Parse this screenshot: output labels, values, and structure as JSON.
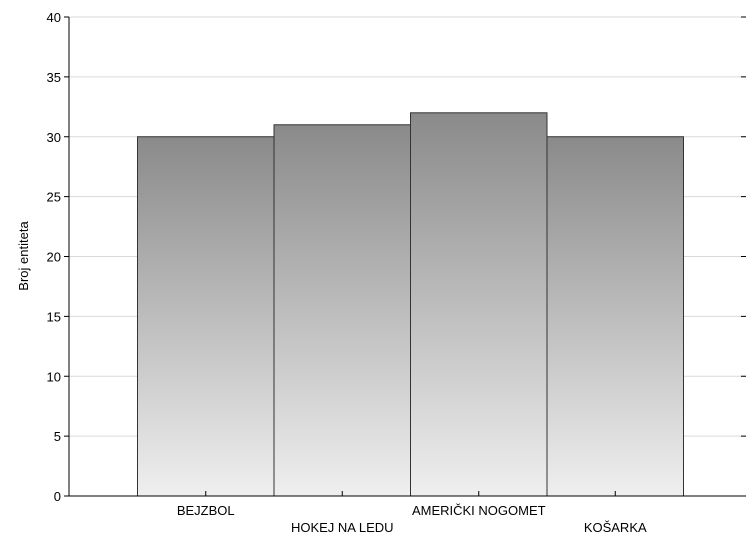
{
  "chart_data": {
    "type": "bar",
    "title": "",
    "xlabel": "",
    "ylabel": "Broj entiteta",
    "categories": [
      "BEJZBOL",
      "HOKEJ NA LEDU",
      "AMERIČKI NOGOMET",
      "KOŠARKA"
    ],
    "values": [
      30,
      31,
      32,
      30
    ],
    "ylim": [
      0,
      40
    ],
    "yticks": [
      0,
      5,
      10,
      15,
      20,
      25,
      30,
      35,
      40
    ],
    "grid": true,
    "legend": "none",
    "colors": {
      "bar_top": "#8a8a8a",
      "bar_bottom": "#efefef",
      "bar_stroke": "#333333",
      "grid": "#d9d9d9"
    }
  }
}
